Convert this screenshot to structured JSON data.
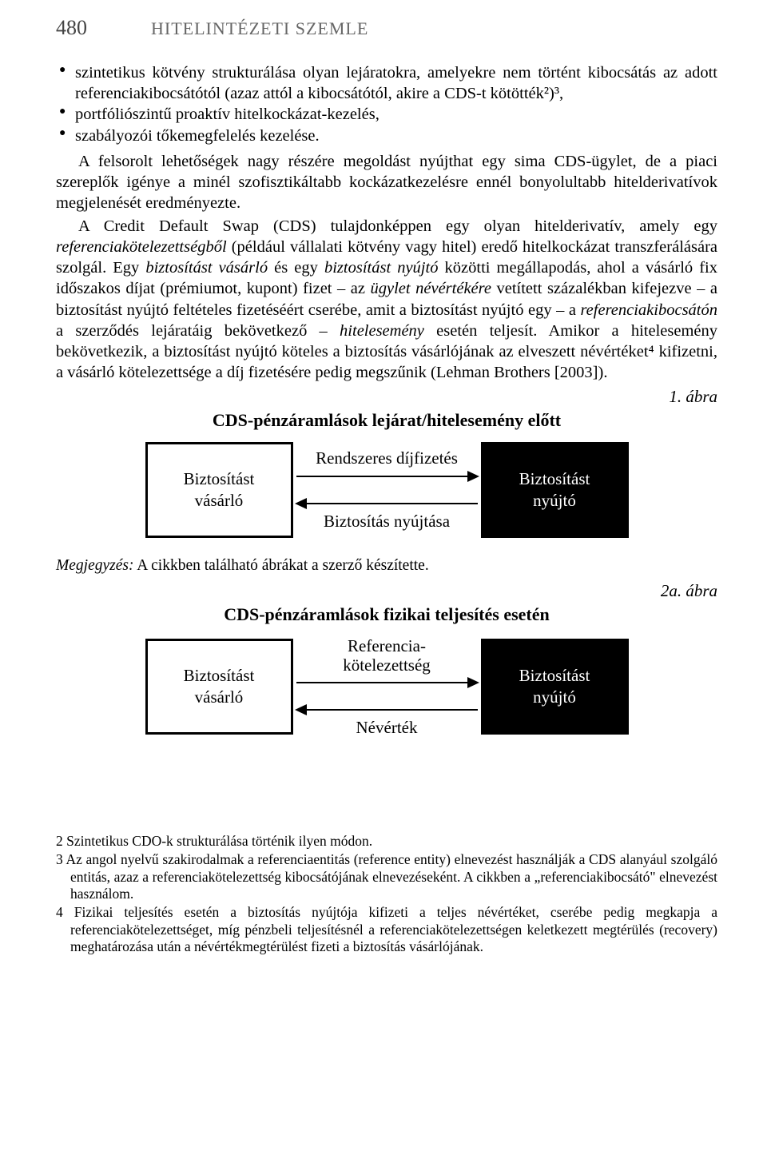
{
  "header": {
    "pageno": "480",
    "journal": "HITELINTÉZETI SZEMLE"
  },
  "bullets": [
    "szintetikus kötvény strukturálása olyan lejáratokra, amelyekre nem történt kibocsátás az adott referenciakibocsátótól (azaz attól a kibocsátótól, akire a CDS-t kötötték²)³,",
    "portfóliószintű proaktív hitelkockázat-kezelés,",
    "szabályozói tőkemegfelelés kezelése."
  ],
  "para1": "A felsorolt lehetőségek nagy részére megoldást nyújthat egy sima CDS-ügylet, de a piaci szereplők igénye a minél szofisztikáltabb kockázatkezelésre ennél bonyolultabb hitelderivatívok megjelenését eredményezte.",
  "para2_pre": "A Credit Default Swap (CDS) tulajdonképpen egy olyan hitelderivatív, amely egy ",
  "para2_it1": "referenciakötelezettségből",
  "para2_mid1": " (például vállalati kötvény vagy hitel) eredő hitelkockázat transzferálására szolgál. Egy ",
  "para2_it2": "biztosítást vásárló",
  "para2_mid2": " és egy ",
  "para2_it3": "biztosítást nyújtó",
  "para2_mid3": " közötti megállapodás, ahol a vásárló fix időszakos díjat (prémiumot, kupont) fizet – az ",
  "para2_it4": "ügylet névértékére",
  "para2_mid4": " vetített százalékban kifejezve – a biztosítást nyújtó feltételes fizetéséért cserébe, amit a biztosítást nyújtó egy – a ",
  "para2_it5": "referenciakibocsátón",
  "para2_mid5": " a szerződés lejáratáig bekövetkező – ",
  "para2_it6": "hitelesemény",
  "para2_mid6": " esetén teljesít. Amikor a hitelesemény bekövetkezik, a biztosítást nyújtó köteles a biztosítás vásárlójának az elveszett névértéket⁴ kifizetni, a vásárló kötelezettsége a díj fizetésére pedig megszűnik (Lehman Brothers [2003]).",
  "fig1": {
    "label": "1. ábra",
    "title": "CDS-pénzáramlások lejárat/hitelesemény előtt",
    "buyer": "Biztosítást\nvásárló",
    "seller": "Biztosítást\nnyújtó",
    "top_arrow": "Rendszeres díjfizetés",
    "bottom_arrow": "Biztosítás nyújtása"
  },
  "note_prefix": "Megjegyzés:",
  "note_body": " A cikkben található ábrákat a szerző készítette.",
  "fig2": {
    "label": "2a. ábra",
    "title": "CDS-pénzáramlások fizikai teljesítés esetén",
    "buyer": "Biztosítást\nvásárló",
    "seller": "Biztosítást\nnyújtó",
    "top_arrow": "Referencia-\nkötelezettség",
    "bottom_arrow": "Névérték"
  },
  "footnotes": [
    "2 Szintetikus CDO-k strukturálása történik ilyen módon.",
    "3 Az angol nyelvű szakirodalmak a referenciaentitás (reference entity) elnevezést használják a CDS alanyául szolgáló entitás, azaz a referenciakötelezettség kibocsátójának elnevezéseként. A cikkben a „referenciakibocsátó\" elnevezést használom.",
    "4 Fizikai teljesítés esetén a biztosítás nyújtója kifizeti a teljes névértéket, cserébe pedig megkapja a referenciakötelezettséget, míg pénzbeli teljesítésnél a referenciakötelezettségen keletkezett megtérülés (recovery) meghatározása után a névértékmegtérülést fizeti a biztosítás vásárlójának."
  ]
}
